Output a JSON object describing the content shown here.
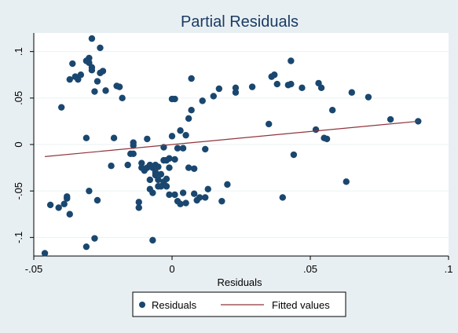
{
  "chart_data": {
    "type": "scatter",
    "title": "Partial Residuals",
    "xlabel": "Residuals",
    "ylabel": "",
    "xlim": [
      -0.05,
      0.1
    ],
    "ylim": [
      -0.12,
      0.12
    ],
    "x_ticks": [
      {
        "value": -0.05,
        "label": "-.05"
      },
      {
        "value": 0,
        "label": "0"
      },
      {
        "value": 0.05,
        "label": ".05"
      },
      {
        "value": 0.1,
        "label": ".1"
      }
    ],
    "y_ticks": [
      {
        "value": -0.1,
        "label": "-.1"
      },
      {
        "value": -0.05,
        "label": "-.05"
      },
      {
        "value": 0,
        "label": "0"
      },
      {
        "value": 0.05,
        "label": ".05"
      },
      {
        "value": 0.1,
        "label": ".1"
      }
    ],
    "grid": true,
    "legend_position": "bottom",
    "series": [
      {
        "name": "Residuals",
        "kind": "scatter",
        "color": "#1a476f",
        "points": [
          [
            -0.046,
            -0.117
          ],
          [
            -0.044,
            -0.065
          ],
          [
            -0.041,
            -0.068
          ],
          [
            -0.039,
            -0.064
          ],
          [
            -0.038,
            -0.058
          ],
          [
            -0.038,
            -0.056
          ],
          [
            -0.037,
            -0.075
          ],
          [
            -0.04,
            0.04
          ],
          [
            -0.036,
            0.087
          ],
          [
            -0.037,
            0.07
          ],
          [
            -0.035,
            0.073
          ],
          [
            -0.034,
            0.07
          ],
          [
            -0.033,
            0.075
          ],
          [
            -0.031,
            0.09
          ],
          [
            -0.03,
            0.093
          ],
          [
            -0.03,
            0.088
          ],
          [
            -0.029,
            0.114
          ],
          [
            -0.029,
            0.083
          ],
          [
            -0.029,
            0.08
          ],
          [
            -0.028,
            0.057
          ],
          [
            -0.027,
            0.068
          ],
          [
            -0.026,
            0.077
          ],
          [
            -0.026,
            0.104
          ],
          [
            -0.025,
            0.079
          ],
          [
            -0.024,
            0.058
          ],
          [
            -0.031,
            0.007
          ],
          [
            -0.03,
            -0.05
          ],
          [
            -0.031,
            -0.11
          ],
          [
            -0.028,
            -0.101
          ],
          [
            -0.027,
            -0.06
          ],
          [
            -0.022,
            -0.023
          ],
          [
            -0.021,
            0.007
          ],
          [
            -0.02,
            0.063
          ],
          [
            -0.019,
            0.062
          ],
          [
            -0.018,
            0.05
          ],
          [
            -0.016,
            -0.022
          ],
          [
            -0.015,
            -0.01
          ],
          [
            -0.014,
            -0.01
          ],
          [
            -0.014,
            0.002
          ],
          [
            -0.014,
            -0.001
          ],
          [
            -0.012,
            -0.068
          ],
          [
            -0.012,
            -0.062
          ],
          [
            -0.011,
            -0.025
          ],
          [
            -0.011,
            -0.02
          ],
          [
            -0.01,
            -0.028
          ],
          [
            -0.009,
            -0.025
          ],
          [
            -0.009,
            0.006
          ],
          [
            -0.008,
            -0.022
          ],
          [
            -0.008,
            -0.038
          ],
          [
            -0.008,
            -0.048
          ],
          [
            -0.007,
            -0.103
          ],
          [
            -0.007,
            -0.052
          ],
          [
            -0.007,
            -0.025
          ],
          [
            -0.006,
            -0.022
          ],
          [
            -0.006,
            -0.03
          ],
          [
            -0.006,
            -0.033
          ],
          [
            -0.005,
            -0.024
          ],
          [
            -0.005,
            -0.038
          ],
          [
            -0.005,
            -0.045
          ],
          [
            -0.004,
            -0.032
          ],
          [
            -0.004,
            -0.045
          ],
          [
            -0.003,
            -0.04
          ],
          [
            -0.003,
            -0.017
          ],
          [
            -0.003,
            -0.003
          ],
          [
            -0.002,
            -0.037
          ],
          [
            -0.002,
            -0.045
          ],
          [
            -0.002,
            -0.017
          ],
          [
            -0.001,
            -0.015
          ],
          [
            -0.001,
            -0.025
          ],
          [
            -0.001,
            -0.054
          ],
          [
            0.0,
            0.049
          ],
          [
            0.0,
            0.009
          ],
          [
            0.001,
            0.049
          ],
          [
            0.001,
            -0.054
          ],
          [
            0.001,
            -0.016
          ],
          [
            0.002,
            -0.004
          ],
          [
            0.002,
            -0.061
          ],
          [
            0.003,
            -0.064
          ],
          [
            0.003,
            0.015
          ],
          [
            0.004,
            -0.004
          ],
          [
            0.004,
            -0.052
          ],
          [
            0.005,
            -0.063
          ],
          [
            0.005,
            0.01
          ],
          [
            0.006,
            -0.025
          ],
          [
            0.006,
            0.028
          ],
          [
            0.007,
            0.037
          ],
          [
            0.007,
            0.071
          ],
          [
            0.008,
            -0.026
          ],
          [
            0.008,
            -0.053
          ],
          [
            0.009,
            -0.06
          ],
          [
            0.01,
            -0.057
          ],
          [
            0.011,
            0.047
          ],
          [
            0.012,
            -0.057
          ],
          [
            0.012,
            -0.005
          ],
          [
            0.013,
            -0.048
          ],
          [
            0.015,
            0.052
          ],
          [
            0.017,
            0.06
          ],
          [
            0.018,
            -0.061
          ],
          [
            0.02,
            -0.043
          ],
          [
            0.023,
            0.056
          ],
          [
            0.023,
            0.061
          ],
          [
            0.029,
            0.062
          ],
          [
            0.035,
            0.022
          ],
          [
            0.036,
            0.073
          ],
          [
            0.037,
            0.075
          ],
          [
            0.038,
            0.065
          ],
          [
            0.04,
            -0.057
          ],
          [
            0.042,
            0.064
          ],
          [
            0.043,
            0.065
          ],
          [
            0.043,
            0.09
          ],
          [
            0.044,
            -0.011
          ],
          [
            0.047,
            0.061
          ],
          [
            0.052,
            0.016
          ],
          [
            0.053,
            0.066
          ],
          [
            0.054,
            0.061
          ],
          [
            0.055,
            0.007
          ],
          [
            0.056,
            0.006
          ],
          [
            0.058,
            0.037
          ],
          [
            0.063,
            -0.04
          ],
          [
            0.065,
            0.056
          ],
          [
            0.071,
            0.051
          ],
          [
            0.079,
            0.027
          ],
          [
            0.089,
            0.025
          ]
        ]
      },
      {
        "name": "Fitted values",
        "kind": "line",
        "color": "#90353b",
        "points": [
          [
            -0.046,
            -0.013
          ],
          [
            0.089,
            0.025
          ]
        ]
      }
    ]
  }
}
